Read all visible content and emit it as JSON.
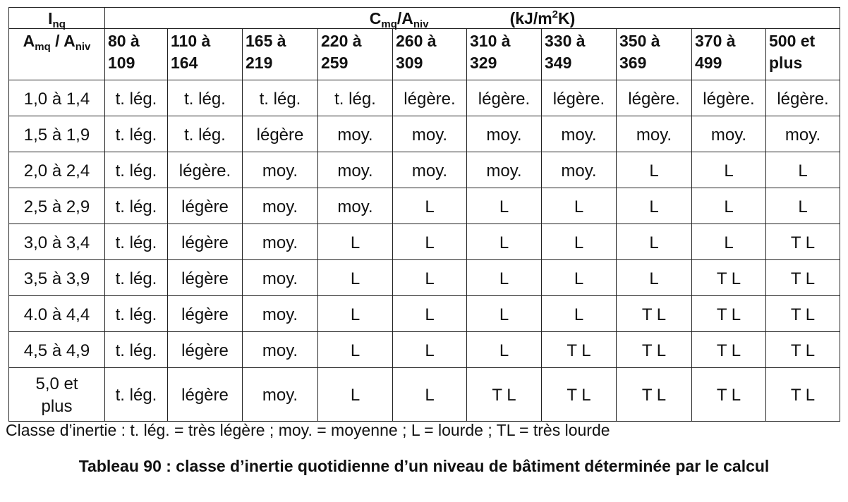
{
  "table": {
    "corner_top": [
      {
        "text": "I"
      },
      {
        "sub": "nq"
      }
    ],
    "corner_bottom": [
      {
        "text": "A"
      },
      {
        "sub": "mq"
      },
      {
        "text": " / A"
      },
      {
        "sub": "niv"
      }
    ],
    "group_quantity": [
      {
        "text": "C"
      },
      {
        "sub": "mq"
      },
      {
        "text": "/A"
      },
      {
        "sub": "niv"
      }
    ],
    "group_unit": [
      {
        "text": "(kJ/m"
      },
      {
        "sup": "2"
      },
      {
        "text": "K)"
      }
    ],
    "columns": [
      "80 à\n109",
      "110 à\n164",
      "165 à\n219",
      "220 à\n259",
      "260 à\n309",
      "310 à\n329",
      "330 à\n349",
      "350 à\n369",
      "370 à\n499",
      "500 et\nplus"
    ],
    "rows": [
      [
        "1,0 à 1,4",
        "t. lég.",
        "t. lég.",
        "t. lég.",
        "t. lég.",
        "légère.",
        "légère.",
        "légère.",
        "légère.",
        "légère.",
        "légère."
      ],
      [
        "1,5 à 1,9",
        "t. lég.",
        "t. lég.",
        "légère",
        "moy.",
        "moy.",
        "moy.",
        "moy.",
        "moy.",
        "moy.",
        "moy."
      ],
      [
        "2,0 à 2,4",
        "t. lég.",
        "légère.",
        "moy.",
        "moy.",
        "moy.",
        "moy.",
        "moy.",
        "L",
        "L",
        "L"
      ],
      [
        "2,5 à 2,9",
        "t. lég.",
        "légère",
        "moy.",
        "moy.",
        "L",
        "L",
        "L",
        "L",
        "L",
        "L"
      ],
      [
        "3,0 à 3,4",
        "t. lég.",
        "légère",
        "moy.",
        "L",
        "L",
        "L",
        "L",
        "L",
        "L",
        "T L"
      ],
      [
        "3,5 à 3,9",
        "t. lég.",
        "légère",
        "moy.",
        "L",
        "L",
        "L",
        "L",
        "L",
        "T L",
        "T L"
      ],
      [
        "4.0 à 4,4",
        "t. lég.",
        "légère",
        "moy.",
        "L",
        "L",
        "L",
        "L",
        "T L",
        "T L",
        "T L"
      ],
      [
        "4,5 à 4,9",
        "t. lég.",
        "légère",
        "moy.",
        "L",
        "L",
        "L",
        "T L",
        "T L",
        "T L",
        "T L"
      ],
      [
        "5,0 et\nplus",
        "t. lég.",
        "légère",
        "moy.",
        "L",
        "L",
        "T L",
        "T L",
        "T L",
        "T L",
        "T L"
      ]
    ]
  },
  "legend": "Classe d’inertie : t. lég. = très légère ; moy. = moyenne ; L = lourde ; TL = très lourde",
  "caption": "Tableau 90 : classe d’inertie quotidienne d’un niveau de bâtiment déterminée par le calcul"
}
